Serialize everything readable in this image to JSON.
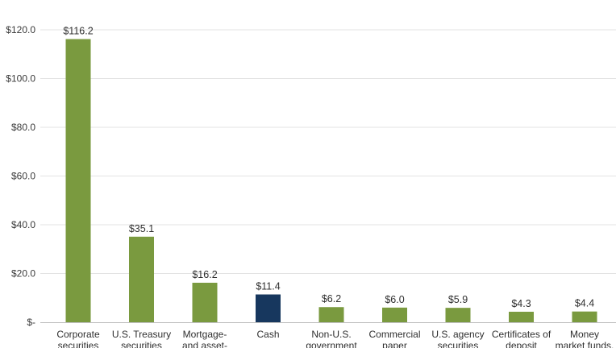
{
  "chart_data": {
    "type": "bar",
    "categories": [
      [
        "Corporate",
        "securities"
      ],
      [
        "U.S. Treasury",
        "securities"
      ],
      [
        "Mortgage-",
        "and asset-"
      ],
      [
        "Cash"
      ],
      [
        "Non-U.S.",
        "government"
      ],
      [
        "Commercial",
        "paper"
      ],
      [
        "U.S. agency",
        "securities"
      ],
      [
        "Certificates of",
        "deposit"
      ],
      [
        "Money",
        "market funds,"
      ]
    ],
    "values": [
      116.2,
      35.1,
      16.2,
      11.4,
      6.2,
      6.0,
      5.9,
      4.3,
      4.4
    ],
    "value_labels": [
      "$116.2",
      "$35.1",
      "$16.2",
      "$11.4",
      "$6.2",
      "$6.0",
      "$5.9",
      "$4.3",
      "$4.4"
    ],
    "y_ticks": [
      0,
      20,
      40,
      60,
      80,
      100,
      120
    ],
    "y_tick_labels": [
      "$-",
      "$20.0",
      "$40.0",
      "$60.0",
      "$80.0",
      "$100.0",
      "$120.0"
    ],
    "ylim": [
      0,
      120
    ],
    "grid": true,
    "colors": {
      "bar_default": "#7a9a3f",
      "bar_highlight": "#17375e",
      "grid": "#e3e3e3",
      "axis": "#bfbfbf"
    },
    "highlight_index": 3
  }
}
